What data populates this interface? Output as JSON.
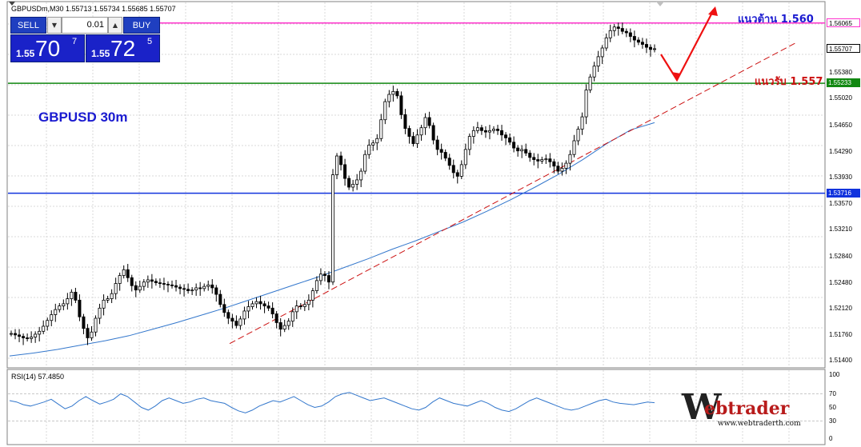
{
  "window": {
    "title_line": "GBPUSDm,M30  1.55713 1.55734 1.55685 1.55707"
  },
  "trade_panel": {
    "sell_label": "SELL",
    "buy_label": "BUY",
    "lot_value": "0.01",
    "sell_quote": {
      "prefix": "1.55",
      "big": "70",
      "sup": "7"
    },
    "buy_quote": {
      "prefix": "1.55",
      "big": "72",
      "sup": "5"
    }
  },
  "annotations": {
    "symbol_label": "GBPUSD 30m",
    "resistance_label": "แนวต้าน 1.560",
    "support_label": "แนวรับ 1.557"
  },
  "rsi": {
    "label": "RSI(14) 57.4850",
    "levels": [
      "100",
      "70",
      "50",
      "30",
      "0"
    ]
  },
  "logo": {
    "initial": "W",
    "text": "ebtrader",
    "url": "www.webtraderth.com"
  },
  "colors": {
    "resistance_line": "#ff33cc",
    "support_line": "#118811",
    "blue_line": "#1133dd",
    "trend_line": "#cc1111",
    "ma_line": "#3377cc",
    "rsi_line": "#3377cc",
    "arrow": "#ee1111"
  },
  "chart_data": {
    "type": "candlestick",
    "title": "GBPUSDm,M30",
    "y_range": [
      1.5135,
      1.5625
    ],
    "price_axis_labels": [
      "1.56065",
      "1.55707",
      "1.55380",
      "1.55233",
      "1.55020",
      "1.54650",
      "1.54290",
      "1.53930",
      "1.53716",
      "1.53570",
      "1.53210",
      "1.52840",
      "1.52480",
      "1.52120",
      "1.51760",
      "1.51400"
    ],
    "horizontal_levels": [
      {
        "label": "1.56065",
        "value": 1.56065,
        "color": "#ff33cc"
      },
      {
        "label": "1.55707",
        "value": 1.55707,
        "color": "#000000"
      },
      {
        "label": "1.55233",
        "value": 1.55233,
        "color": "#118811"
      },
      {
        "label": "1.53716",
        "value": 1.53716,
        "color": "#1133dd"
      }
    ],
    "close_series": [
      1.5178,
      1.5176,
      1.5174,
      1.5172,
      1.5171,
      1.5173,
      1.5177,
      1.5181,
      1.5188,
      1.5196,
      1.5204,
      1.5211,
      1.5216,
      1.5219,
      1.5226,
      1.5235,
      1.5224,
      1.5201,
      1.5185,
      1.5172,
      1.518,
      1.5199,
      1.5213,
      1.5224,
      1.5226,
      1.5233,
      1.5247,
      1.5258,
      1.5266,
      1.5255,
      1.5244,
      1.5238,
      1.5243,
      1.5249,
      1.5252,
      1.525,
      1.5248,
      1.5247,
      1.5246,
      1.5245,
      1.5244,
      1.5242,
      1.524,
      1.5239,
      1.5237,
      1.5238,
      1.5241,
      1.524,
      1.5243,
      1.5245,
      1.5241,
      1.5232,
      1.5218,
      1.5207,
      1.5199,
      1.5195,
      1.5189,
      1.5198,
      1.5209,
      1.5215,
      1.5219,
      1.5222,
      1.5219,
      1.5216,
      1.5213,
      1.5205,
      1.5193,
      1.5184,
      1.5189,
      1.5195,
      1.5208,
      1.5216,
      1.5215,
      1.5218,
      1.5224,
      1.5237,
      1.5251,
      1.526,
      1.5258,
      1.5249,
      1.5397,
      1.5423,
      1.5411,
      1.5392,
      1.538,
      1.5384,
      1.539,
      1.5402,
      1.5425,
      1.5438,
      1.5441,
      1.5447,
      1.5473,
      1.5498,
      1.5508,
      1.5512,
      1.5506,
      1.548,
      1.5461,
      1.545,
      1.544,
      1.5452,
      1.5462,
      1.5476,
      1.5465,
      1.5445,
      1.5432,
      1.5428,
      1.542,
      1.541,
      1.54,
      1.5395,
      1.5411,
      1.5432,
      1.545,
      1.5458,
      1.5462,
      1.5458,
      1.5456,
      1.5458,
      1.546,
      1.5458,
      1.5452,
      1.5448,
      1.5442,
      1.5434,
      1.543,
      1.5432,
      1.5427,
      1.5421,
      1.5418,
      1.5416,
      1.5418,
      1.5419,
      1.5415,
      1.5409,
      1.5402,
      1.5406,
      1.5413,
      1.5425,
      1.5444,
      1.546,
      1.5477,
      1.5514,
      1.5532,
      1.5547,
      1.556,
      1.5572,
      1.5586,
      1.5596,
      1.5601,
      1.5599,
      1.5595,
      1.5593,
      1.5588,
      1.5583,
      1.558,
      1.5577,
      1.5573,
      1.557,
      1.5571
    ],
    "ma_series": [
      1.5147,
      1.5151,
      1.5156,
      1.5162,
      1.5168,
      1.5175,
      1.5184,
      1.5193,
      1.5203,
      1.5213,
      1.5224,
      1.5235,
      1.5246,
      1.5257,
      1.5269,
      1.5281,
      1.5294,
      1.5306,
      1.5319,
      1.5332,
      1.5347,
      1.5363,
      1.538,
      1.5398,
      1.5418,
      1.544,
      1.5459,
      1.5469
    ],
    "trend_line": {
      "from": 1.5164,
      "to": 1.558
    },
    "rsi_series": [
      60,
      58,
      54,
      52,
      55,
      58,
      62,
      55,
      48,
      52,
      60,
      66,
      60,
      55,
      58,
      62,
      70,
      66,
      58,
      50,
      46,
      52,
      60,
      64,
      60,
      56,
      58,
      62,
      64,
      60,
      58,
      56,
      50,
      45,
      42,
      46,
      52,
      56,
      60,
      58,
      62,
      66,
      60,
      54,
      50,
      52,
      58,
      66,
      70,
      72,
      68,
      64,
      60,
      62,
      64,
      60,
      56,
      52,
      48,
      46,
      50,
      58,
      64,
      60,
      56,
      54,
      52,
      56,
      60,
      56,
      50,
      46,
      44,
      48,
      54,
      60,
      64,
      60,
      56,
      52,
      48,
      46,
      48,
      52,
      56,
      60,
      62,
      58,
      56,
      55,
      54,
      56,
      58,
      57
    ]
  }
}
